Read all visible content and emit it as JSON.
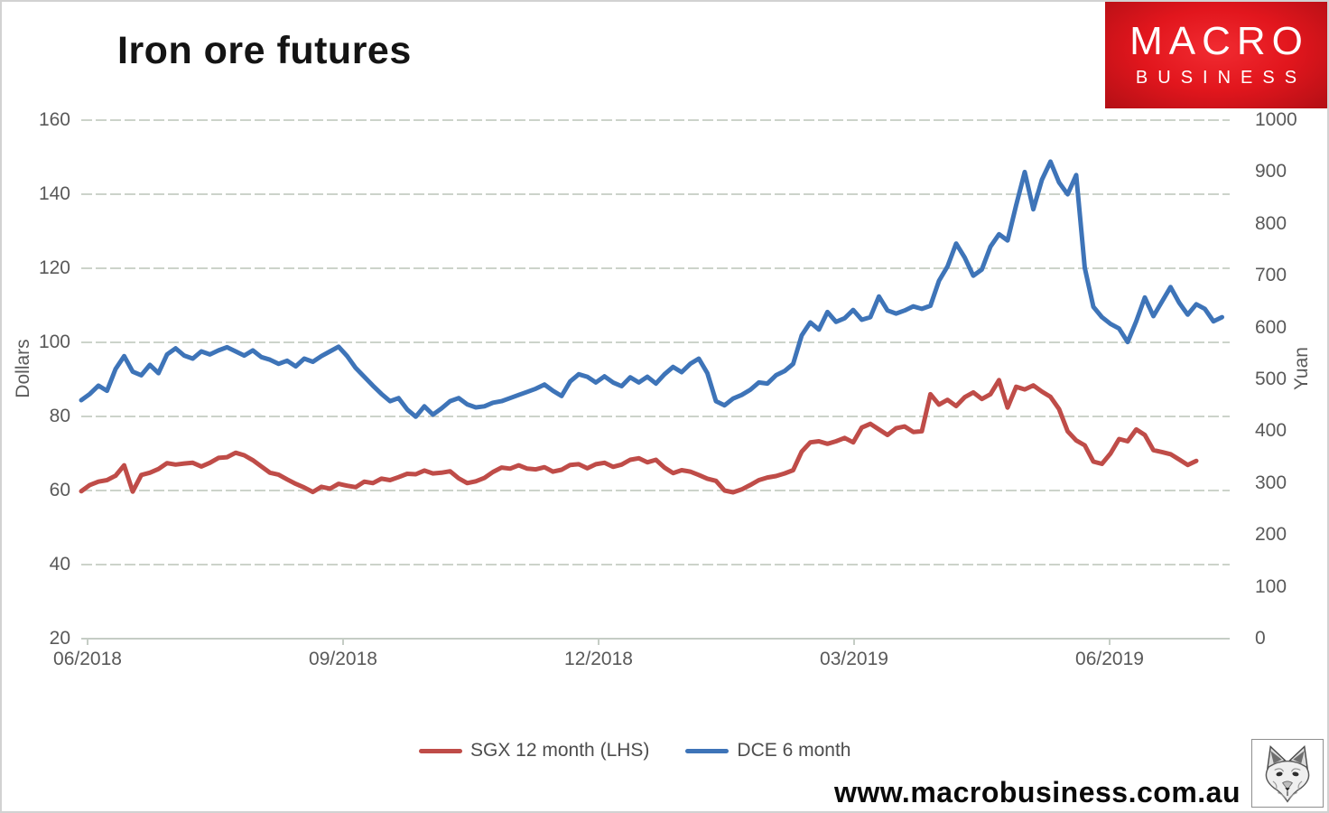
{
  "title": "Iron ore futures",
  "logo": {
    "line1": "MACRO",
    "line2": "BUSINESS",
    "bg_color": "#e2161d"
  },
  "footer": {
    "website": "www.macrobusiness.com.au"
  },
  "colors": {
    "sgx_red": "#bf4c48",
    "dce_blue": "#3e74b8",
    "gridline": "#ccd3ca",
    "axis_line": "#c5cdc5",
    "tick_text": "#595959"
  },
  "chart_data": {
    "type": "line",
    "title": "Iron ore futures",
    "grid": true,
    "legend_position": "bottom",
    "x_tick_labels": [
      "06/2018",
      "09/2018",
      "12/2018",
      "03/2019",
      "06/2019"
    ],
    "left_axis": {
      "label": "Dollars",
      "min": 20,
      "max": 160,
      "step": 20,
      "ticks": [
        160,
        140,
        120,
        100,
        80,
        60,
        40,
        20
      ]
    },
    "right_axis": {
      "label": "Yuan",
      "min": 0,
      "max": 1000,
      "step": 100,
      "ticks": [
        1000,
        900,
        800,
        700,
        600,
        500,
        400,
        300,
        200,
        100,
        0
      ]
    },
    "series": [
      {
        "name": "SGX 12 month (LHS)",
        "axis": "left",
        "color": "#bf4c48",
        "values": [
          59.8,
          61.5,
          62.4,
          62.8,
          64.0,
          66.8,
          59.7,
          64.2,
          64.8,
          65.8,
          67.4,
          67.0,
          67.3,
          67.5,
          66.5,
          67.5,
          68.8,
          69.0,
          70.2,
          69.5,
          68.2,
          66.5,
          64.8,
          64.3,
          63.0,
          61.8,
          60.8,
          59.6,
          61.0,
          60.5,
          61.8,
          61.3,
          60.9,
          62.4,
          62.0,
          63.2,
          62.8,
          63.6,
          64.5,
          64.4,
          65.4,
          64.6,
          64.8,
          65.2,
          63.3,
          62.0,
          62.5,
          63.4,
          65.0,
          66.2,
          65.9,
          66.8,
          65.9,
          65.7,
          66.3,
          65.1,
          65.6,
          66.9,
          67.1,
          66.0,
          67.1,
          67.5,
          66.4,
          67.0,
          68.3,
          68.7,
          67.6,
          68.3,
          66.2,
          64.7,
          65.5,
          65.1,
          64.2,
          63.2,
          62.6,
          60.0,
          59.5,
          60.3,
          61.5,
          62.8,
          63.5,
          63.9,
          64.6,
          65.5,
          70.5,
          73.0,
          73.3,
          72.6,
          73.3,
          74.2,
          73.0,
          77.0,
          78.0,
          76.5,
          75.0,
          76.8,
          77.3,
          75.8,
          76.0,
          86.0,
          83.2,
          84.5,
          82.8,
          85.2,
          86.5,
          84.7,
          86.0,
          89.8,
          82.4,
          88.0,
          87.3,
          88.4,
          86.7,
          85.3,
          82.0,
          76.0,
          73.5,
          72.2,
          67.8,
          67.2,
          70.0,
          73.9,
          73.3,
          76.5,
          75.0,
          70.9,
          70.4,
          69.8,
          68.4,
          66.9,
          68.0
        ]
      },
      {
        "name": "DCE 6 month",
        "axis": "right",
        "color": "#3e74b8",
        "values": [
          460,
          472,
          488,
          478,
          520,
          545,
          515,
          508,
          528,
          512,
          548,
          560,
          546,
          540,
          554,
          548,
          556,
          562,
          554,
          546,
          556,
          543,
          538,
          530,
          536,
          525,
          540,
          534,
          545,
          554,
          563,
          545,
          522,
          505,
          488,
          472,
          458,
          464,
          442,
          428,
          448,
          432,
          444,
          458,
          464,
          452,
          446,
          448,
          455,
          458,
          464,
          470,
          476,
          482,
          490,
          478,
          468,
          496,
          510,
          505,
          494,
          506,
          494,
          487,
          504,
          494,
          505,
          492,
          510,
          524,
          514,
          530,
          540,
          512,
          458,
          450,
          463,
          470,
          480,
          494,
          492,
          508,
          516,
          530,
          585,
          610,
          596,
          630,
          611,
          618,
          634,
          615,
          620,
          660,
          633,
          627,
          633,
          641,
          636,
          642,
          690,
          718,
          762,
          735,
          700,
          712,
          756,
          780,
          768,
          836,
          900,
          828,
          885,
          920,
          880,
          857,
          894,
          715,
          640,
          620,
          607,
          598,
          572,
          612,
          658,
          622,
          650,
          678,
          648,
          625,
          645,
          636,
          612,
          620
        ]
      }
    ]
  }
}
